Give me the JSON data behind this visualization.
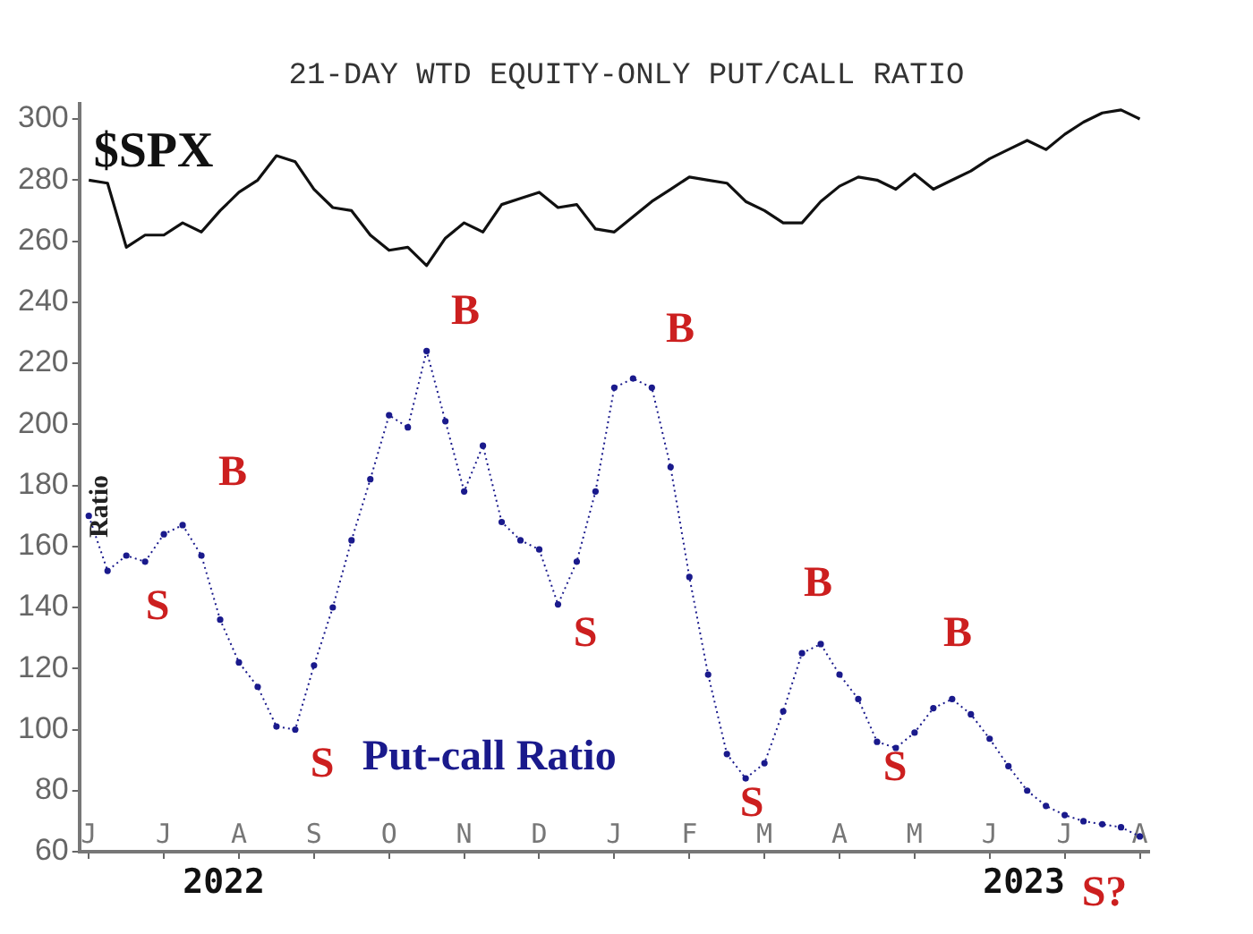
{
  "chart_data": {
    "type": "line",
    "title": "21-DAY WTD EQUITY-ONLY PUT/CALL RATIO",
    "ylabel": "Ratio",
    "categories": [
      "J",
      null,
      null,
      null,
      "J",
      null,
      null,
      null,
      "A",
      null,
      null,
      null,
      "S",
      null,
      null,
      null,
      "O",
      null,
      null,
      null,
      "N",
      null,
      null,
      null,
      "D",
      null,
      null,
      null,
      "J",
      null,
      null,
      null,
      "F",
      null,
      null,
      null,
      "M",
      null,
      null,
      null,
      "A",
      null,
      null,
      null,
      "M",
      null,
      null,
      null,
      "J",
      null,
      null,
      null,
      "J",
      null,
      null,
      null,
      "A"
    ],
    "ylim": [
      60,
      305
    ],
    "yticks": [
      60,
      80,
      100,
      120,
      140,
      160,
      180,
      200,
      220,
      240,
      260,
      280,
      300
    ],
    "grid": false,
    "legend": false,
    "series": [
      {
        "name": "$SPX",
        "color": "#111111",
        "marker": "none",
        "line_style": "solid",
        "values": [
          280,
          279,
          258,
          262,
          262,
          266,
          263,
          270,
          276,
          280,
          288,
          286,
          277,
          271,
          270,
          262,
          257,
          258,
          252,
          261,
          266,
          263,
          272,
          274,
          276,
          271,
          272,
          264,
          263,
          268,
          273,
          277,
          281,
          280,
          279,
          273,
          270,
          266,
          266,
          273,
          278,
          281,
          280,
          277,
          282,
          277,
          280,
          283,
          287,
          290,
          293,
          290,
          295,
          299,
          302,
          303,
          300
        ]
      },
      {
        "name": "Put-call Ratio",
        "color": "#1a1a8c",
        "marker": "circle",
        "line_style": "dotted",
        "values": [
          170,
          152,
          157,
          155,
          164,
          167,
          157,
          136,
          122,
          114,
          101,
          100,
          121,
          140,
          162,
          182,
          203,
          199,
          224,
          201,
          178,
          193,
          168,
          162,
          159,
          141,
          155,
          178,
          212,
          215,
          212,
          186,
          150,
          118,
          92,
          84,
          89,
          106,
          125,
          128,
          118,
          110,
          96,
          94,
          99,
          107,
          110,
          105,
          97,
          88,
          80,
          75,
          72,
          70,
          69,
          68,
          65
        ]
      }
    ],
    "annotations": [
      "S",
      "B",
      "S",
      "B",
      "S",
      "B",
      "S",
      "B",
      "S",
      "B",
      "S?",
      "2022",
      "2023"
    ]
  }
}
